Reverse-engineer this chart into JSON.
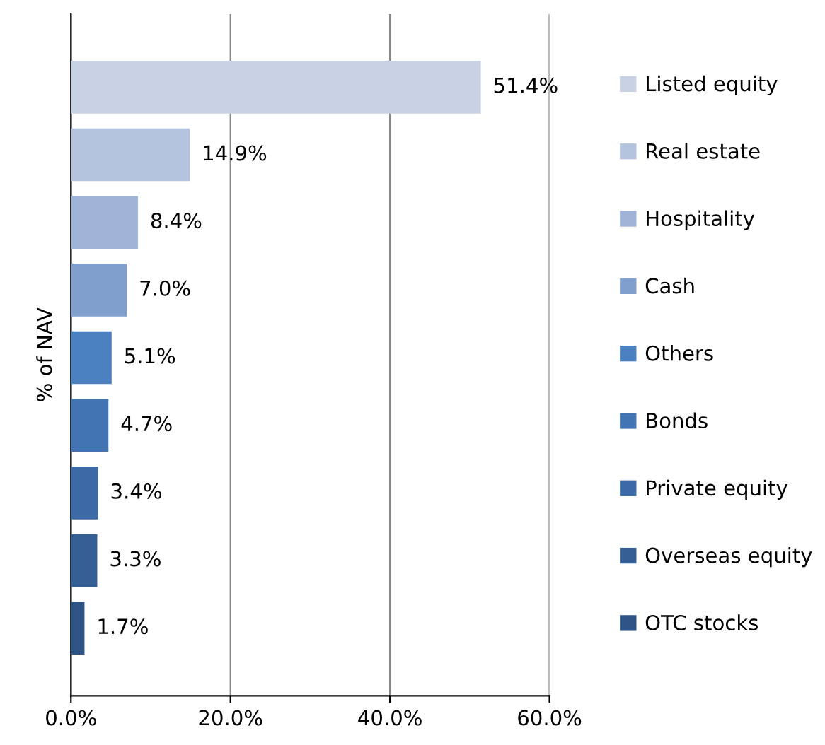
{
  "chart_data": {
    "type": "bar",
    "orientation": "horizontal",
    "ylabel": "% of NAV",
    "categories": [
      null,
      null,
      null,
      null,
      null,
      null,
      null,
      null,
      null
    ],
    "series": [
      {
        "name": "Listed equity",
        "color": "#c8d2e4",
        "values": [
          51.4,
          null,
          null,
          null,
          null,
          null,
          null,
          null,
          null
        ],
        "value_labels": [
          "51.4%",
          null,
          null,
          null,
          null,
          null,
          null,
          null,
          null
        ]
      },
      {
        "name": "Real estate",
        "color": "#b5c4de",
        "values": [
          null,
          14.9,
          null,
          null,
          null,
          null,
          null,
          null,
          null
        ],
        "value_labels": [
          null,
          "14.9%",
          null,
          null,
          null,
          null,
          null,
          null,
          null
        ]
      },
      {
        "name": "Hospitality",
        "color": "#9fb3d7",
        "values": [
          null,
          null,
          8.4,
          null,
          null,
          null,
          null,
          null,
          null
        ],
        "value_labels": [
          null,
          null,
          "8.4%",
          null,
          null,
          null,
          null,
          null,
          null
        ]
      },
      {
        "name": "Cash",
        "color": "#819fcd",
        "values": [
          null,
          null,
          null,
          7.0,
          null,
          null,
          null,
          null,
          null
        ],
        "value_labels": [
          null,
          null,
          null,
          "7.0%",
          null,
          null,
          null,
          null,
          null
        ]
      },
      {
        "name": "Others",
        "color": "#4b80c1",
        "values": [
          null,
          null,
          null,
          null,
          5.1,
          null,
          null,
          null,
          null
        ],
        "value_labels": [
          null,
          null,
          null,
          null,
          "5.1%",
          null,
          null,
          null,
          null
        ]
      },
      {
        "name": "Bonds",
        "color": "#4274b4",
        "values": [
          null,
          null,
          null,
          null,
          null,
          4.7,
          null,
          null,
          null
        ],
        "value_labels": [
          null,
          null,
          null,
          null,
          null,
          "4.7%",
          null,
          null,
          null
        ]
      },
      {
        "name": "Private equity",
        "color": "#3b6aa6",
        "values": [
          null,
          null,
          null,
          null,
          null,
          null,
          3.4,
          null,
          null
        ],
        "value_labels": [
          null,
          null,
          null,
          null,
          null,
          null,
          "3.4%",
          null,
          null
        ]
      },
      {
        "name": "Overseas equity",
        "color": "#355f95",
        "values": [
          null,
          null,
          null,
          null,
          null,
          null,
          null,
          3.3,
          null
        ],
        "value_labels": [
          null,
          null,
          null,
          null,
          null,
          null,
          null,
          "3.3%",
          null
        ]
      },
      {
        "name": "OTC stocks",
        "color": "#2e5486",
        "values": [
          null,
          null,
          null,
          null,
          null,
          null,
          null,
          null,
          1.7
        ],
        "value_labels": [
          null,
          null,
          null,
          null,
          null,
          null,
          null,
          null,
          "1.7%"
        ]
      }
    ],
    "xlim": [
      0,
      60
    ],
    "xticks": [
      {
        "value": 0,
        "label": "0.0%"
      },
      {
        "value": 20,
        "label": "20.0%"
      },
      {
        "value": 40,
        "label": "40.0%"
      },
      {
        "value": 60,
        "label": "60.0%"
      }
    ],
    "grid": "x",
    "legend": "right"
  }
}
